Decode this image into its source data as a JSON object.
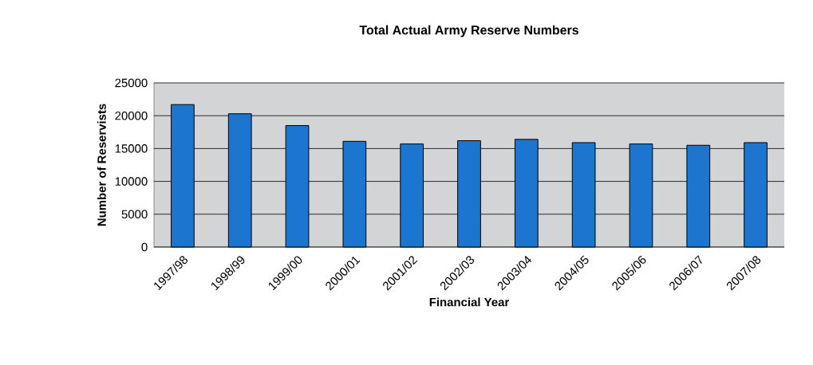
{
  "chart_data": {
    "type": "bar",
    "title": "Total Actual Army Reserve Numbers",
    "xlabel": "Financial Year",
    "ylabel": "Number of Reservists",
    "categories": [
      "1997/98",
      "1998/99",
      "1999/00",
      "2000/01",
      "2001/02",
      "2002/03",
      "2003/04",
      "2004/05",
      "2005/06",
      "2006/07",
      "2007/08"
    ],
    "values": [
      21700,
      20300,
      18500,
      16100,
      15700,
      16200,
      16400,
      15900,
      15700,
      15500,
      15900
    ],
    "color": "#1c75cf",
    "ylim": [
      0,
      25000
    ],
    "yticks": [
      0,
      5000,
      10000,
      15000,
      20000,
      25000
    ],
    "grid": "y"
  }
}
